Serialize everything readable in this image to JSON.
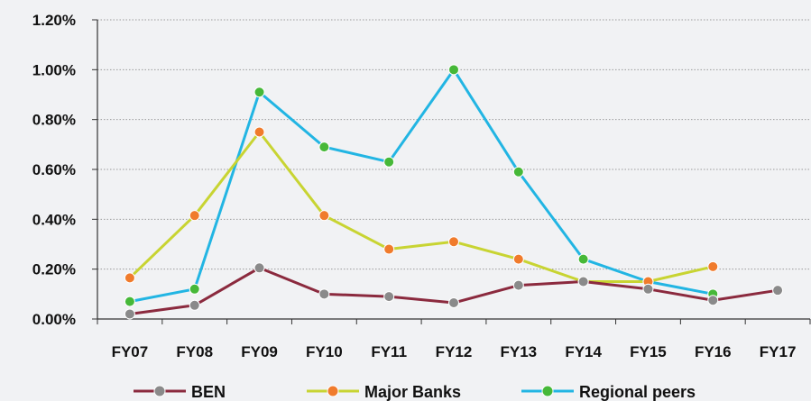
{
  "chart_data": {
    "type": "line",
    "categories": [
      "FY07",
      "FY08",
      "FY09",
      "FY10",
      "FY11",
      "FY12",
      "FY13",
      "FY14",
      "FY15",
      "FY16",
      "FY17"
    ],
    "y_ticks": [
      "0.00%",
      "0.20%",
      "0.40%",
      "0.60%",
      "0.80%",
      "1.00%",
      "1.20%"
    ],
    "ylim": [
      0,
      1.2
    ],
    "grid": true,
    "legend_position": "bottom",
    "series": [
      {
        "name": "BEN",
        "color": "#8b2a3e",
        "marker_color": "#8a8a8a",
        "values": [
          0.02,
          0.055,
          0.205,
          0.1,
          0.09,
          0.065,
          0.135,
          0.15,
          0.12,
          0.075,
          0.115
        ]
      },
      {
        "name": "Major Banks",
        "color": "#c8d432",
        "marker_color": "#f07b2c",
        "values": [
          0.165,
          0.415,
          0.75,
          0.415,
          0.28,
          0.31,
          0.24,
          0.15,
          0.15,
          0.21,
          null
        ]
      },
      {
        "name": "Regional peers",
        "color": "#22b5e3",
        "marker_color": "#46b838",
        "values": [
          0.07,
          0.12,
          0.91,
          0.69,
          0.63,
          1.0,
          0.59,
          0.24,
          0.15,
          0.1,
          null
        ]
      }
    ]
  }
}
